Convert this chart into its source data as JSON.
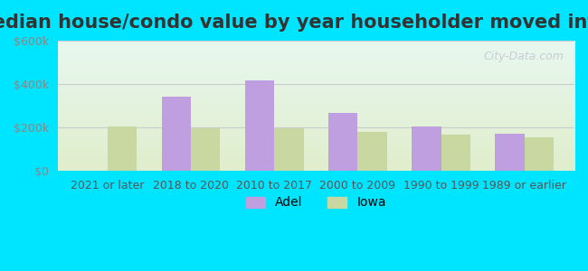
{
  "title": "Median house/condo value by year householder moved into unit",
  "categories": [
    "2021 or later",
    "2018 to 2020",
    "2010 to 2017",
    "2000 to 2009",
    "1990 to 1999",
    "1989 or earlier"
  ],
  "adel_values": [
    0,
    340000,
    415000,
    265000,
    205000,
    170000
  ],
  "iowa_values": [
    205000,
    195000,
    195000,
    180000,
    165000,
    155000
  ],
  "adel_color": "#bf9fdf",
  "iowa_color": "#c8d8a0",
  "background_outer": "#00e5ff",
  "background_inner_top": "#e8f8f0",
  "background_inner_bottom": "#e0eecc",
  "ylim": [
    0,
    600000
  ],
  "yticks": [
    0,
    200000,
    400000,
    600000
  ],
  "ytick_labels": [
    "$0",
    "$200k",
    "$400k",
    "$600k"
  ],
  "ylabel_color": "#888888",
  "grid_color": "#cccccc",
  "legend_adel": "Adel",
  "legend_iowa": "Iowa",
  "bar_width": 0.35,
  "watermark": "City-Data.com",
  "title_fontsize": 15,
  "tick_fontsize": 9
}
